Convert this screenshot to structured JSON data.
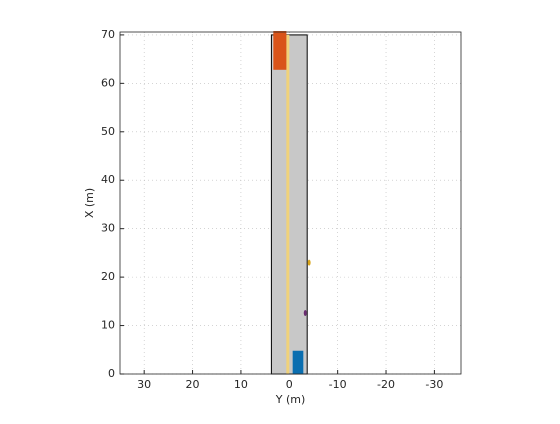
{
  "chart_data": {
    "type": "scenario",
    "xlabel": "Y (m)",
    "ylabel": "X (m)",
    "xlim": [
      35,
      -35.5
    ],
    "ylim": [
      0,
      70.6
    ],
    "xticks": [
      30,
      20,
      10,
      0,
      -10,
      -20,
      -30
    ],
    "yticks": [
      0,
      10,
      20,
      30,
      40,
      50,
      60,
      70
    ],
    "grid": true,
    "road": {
      "left": 3.7,
      "right": -3.7,
      "start": 0,
      "end": 70,
      "color": "#c8c8c8"
    },
    "lane_marking": {
      "y": 0.3,
      "start": 0,
      "end": 70,
      "color": "#f0d27a"
    },
    "vehicles": [
      {
        "left": 3.3,
        "right": 0.6,
        "start": 62.8,
        "end": 70.8,
        "color": "#d9541a"
      },
      {
        "left": -0.7,
        "right": -2.9,
        "start": 0,
        "end": 4.8,
        "color": "#0a6eb0"
      }
    ],
    "objects": [
      {
        "y": -3.3,
        "x": 12.6,
        "color": "#6a2c70"
      },
      {
        "y": -4.1,
        "x": 23.0,
        "color": "#d9a51a"
      }
    ]
  }
}
